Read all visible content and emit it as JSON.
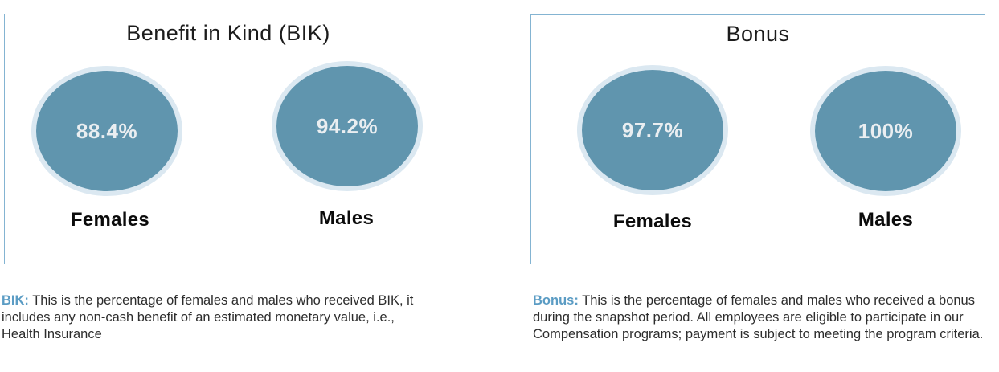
{
  "panels": [
    {
      "id": "bik",
      "title": "Benefit in Kind (BIK)",
      "circles": [
        {
          "label": "Females",
          "value": "88.4%"
        },
        {
          "label": "Males",
          "value": "94.2%"
        }
      ],
      "caption_lead": "BIK:",
      "caption_text": " This is the percentage of females and males who received BIK, it includes any non-cash benefit of an estimated monetary value, i.e., Health Insurance"
    },
    {
      "id": "bonus",
      "title": "Bonus",
      "circles": [
        {
          "label": "Females",
          "value": "97.7%"
        },
        {
          "label": "Males",
          "value": "100%"
        }
      ],
      "caption_lead": "Bonus:",
      "caption_text": " This is the percentage of females and males who received a bonus during the snapshot period.  All employees are eligible to participate in our Compensation programs; payment is subject to meeting the program criteria."
    }
  ],
  "colors": {
    "panel_border": "#84b4d2",
    "circle_fill": "#6095ae",
    "circle_halo": "#dbe8f1",
    "percent_text": "#eaeef1",
    "caption_lead_blue": "#5b9cc4",
    "label_text": "#0b0b0b"
  },
  "chart_data": [
    {
      "type": "pie",
      "subtype": "filled-percentage-circles",
      "title": "Benefit in Kind (BIK)",
      "categories": [
        "Females",
        "Males"
      ],
      "values": [
        88.4,
        94.2
      ],
      "unit": "%",
      "value_labels": [
        "88.4%",
        "94.2%"
      ],
      "legend_position": "none",
      "grid": false,
      "circle_color": "#6095ae"
    },
    {
      "type": "pie",
      "subtype": "filled-percentage-circles",
      "title": "Bonus",
      "categories": [
        "Females",
        "Males"
      ],
      "values": [
        97.7,
        100
      ],
      "unit": "%",
      "value_labels": [
        "97.7%",
        "100%"
      ],
      "legend_position": "none",
      "grid": false,
      "circle_color": "#6095ae"
    }
  ]
}
